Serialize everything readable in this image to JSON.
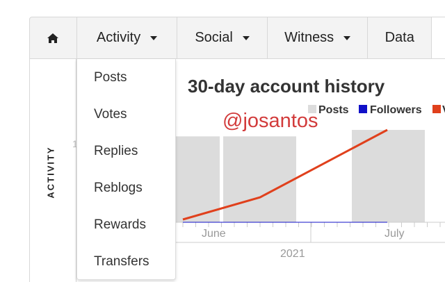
{
  "nav": {
    "items": [
      {
        "label": "Activity"
      },
      {
        "label": "Social"
      },
      {
        "label": "Witness"
      },
      {
        "label": "Data"
      }
    ],
    "home_icon": "home-icon"
  },
  "side_label": "ACTIVITY",
  "dropdown": {
    "items": [
      "Posts",
      "Votes",
      "Replies",
      "Reblogs",
      "Rewards",
      "Transfers"
    ]
  },
  "chart": {
    "title": "30-day account history",
    "watermark": "@josantos",
    "y_tick_partial": "1"
  },
  "chart_data": {
    "type": "bar+line",
    "title": "30-day account history",
    "legend": [
      "Posts",
      "Followers",
      "V"
    ],
    "legend_placement": "top-right",
    "x_tick_labels": [
      "June",
      "July"
    ],
    "x_group_label": "2021",
    "series": [
      {
        "name": "Posts",
        "type": "bar",
        "color": "#dcdcdc",
        "values": [
          0.93,
          0.93,
          1.0
        ]
      },
      {
        "name": "Followers",
        "type": "line",
        "color": "#1010c8",
        "values": [
          0,
          0,
          0
        ]
      },
      {
        "name": "V",
        "type": "line",
        "color": "#e0401c",
        "values": [
          0.03,
          0.27,
          1.0
        ]
      }
    ],
    "ylim": [
      0,
      1
    ]
  }
}
